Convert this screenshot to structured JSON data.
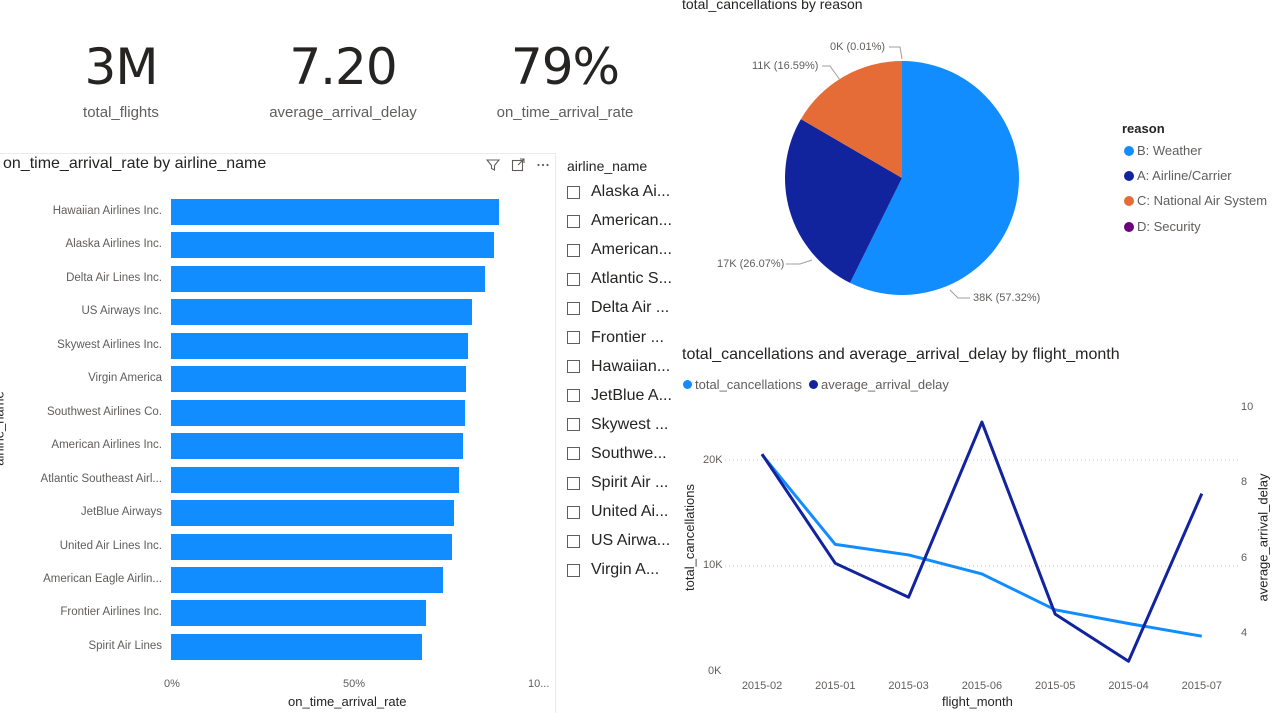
{
  "kpis": [
    {
      "value": "3M",
      "label": "total_flights"
    },
    {
      "value": "7.20",
      "label": "average_arrival_delay"
    },
    {
      "value": "79%",
      "label": "on_time_arrival_rate"
    }
  ],
  "bar_chart": {
    "title": "on_time_arrival_rate by airline_name",
    "ylabel": "airline_name",
    "xlabel": "on_time_arrival_rate",
    "xticks": [
      "0%",
      "50%",
      "10..."
    ]
  },
  "slicer": {
    "title": "airline_name",
    "items": [
      "Alaska Ai...",
      "American...",
      "American...",
      "Atlantic S...",
      "Delta Air ...",
      "Frontier ...",
      "Hawaiian...",
      "JetBlue A...",
      "Skywest ...",
      "Southwe...",
      "Spirit Air ...",
      "United Ai...",
      "US Airwa...",
      "Virgin A..."
    ]
  },
  "pie": {
    "title": "total_cancellations by reason",
    "legend_title": "reason",
    "legend": [
      {
        "label": "B: Weather",
        "color": "#118dff"
      },
      {
        "label": "A: Airline/Carrier",
        "color": "#12239e"
      },
      {
        "label": "C: National Air System",
        "color": "#e66c37"
      },
      {
        "label": "D: Security",
        "color": "#6b007b"
      }
    ],
    "labels": [
      "0K (0.01%)",
      "11K (16.59%)",
      "17K (26.07%)",
      "38K (57.32%)"
    ]
  },
  "line_chart": {
    "title": "total_cancellations and average_arrival_delay by flight_month",
    "legend": [
      {
        "label": "total_cancellations",
        "color": "#118dff"
      },
      {
        "label": "average_arrival_delay",
        "color": "#12239e"
      }
    ],
    "xlabel": "flight_month",
    "ylabel_left": "total_cancellations",
    "ylabel_right": "average_arrival_delay",
    "left_ticks": [
      "20K",
      "10K",
      "0K"
    ],
    "right_ticks": [
      "10",
      "8",
      "6",
      "4"
    ]
  },
  "chart_data": [
    {
      "type": "bar",
      "title": "on_time_arrival_rate by airline_name",
      "xlabel": "on_time_arrival_rate",
      "ylabel": "airline_name",
      "xlim": [
        0,
        1
      ],
      "categories": [
        "Hawaiian Airlines Inc.",
        "Alaska Airlines Inc.",
        "Delta Air Lines Inc.",
        "US Airways Inc.",
        "Skywest Airlines Inc.",
        "Virgin America",
        "Southwest Airlines Co.",
        "American Airlines Inc.",
        "Atlantic Southeast Airl...",
        "JetBlue Airways",
        "United Air Lines Inc.",
        "American Eagle Airlin...",
        "Frontier Airlines Inc.",
        "Spirit Air Lines"
      ],
      "values": [
        0.895,
        0.88,
        0.855,
        0.82,
        0.81,
        0.805,
        0.8,
        0.795,
        0.785,
        0.77,
        0.765,
        0.74,
        0.695,
        0.685
      ],
      "color": "#118dff"
    },
    {
      "type": "pie",
      "title": "total_cancellations by reason",
      "categories": [
        "B: Weather",
        "A: Airline/Carrier",
        "C: National Air System",
        "D: Security"
      ],
      "values": [
        57.32,
        26.07,
        16.59,
        0.01
      ],
      "colors": [
        "#118dff",
        "#12239e",
        "#e66c37",
        "#6b007b"
      ]
    },
    {
      "type": "line",
      "title": "total_cancellations and average_arrival_delay by flight_month",
      "x": [
        "2015-02",
        "2015-01",
        "2015-03",
        "2015-06",
        "2015-05",
        "2015-04",
        "2015-07"
      ],
      "xlabel": "flight_month",
      "series": [
        {
          "name": "total_cancellations",
          "axis": "left",
          "values": [
            20500,
            12000,
            11000,
            9200,
            5800,
            4500,
            3300
          ],
          "color": "#118dff"
        },
        {
          "name": "average_arrival_delay",
          "axis": "right",
          "values": [
            8.75,
            5.85,
            4.95,
            9.6,
            4.5,
            3.25,
            7.7
          ],
          "color": "#12239e"
        }
      ],
      "ylim_left": [
        0,
        24000
      ],
      "ylim_right": [
        3,
        10.5
      ],
      "ylabel_left": "total_cancellations",
      "ylabel_right": "average_arrival_delay"
    }
  ]
}
